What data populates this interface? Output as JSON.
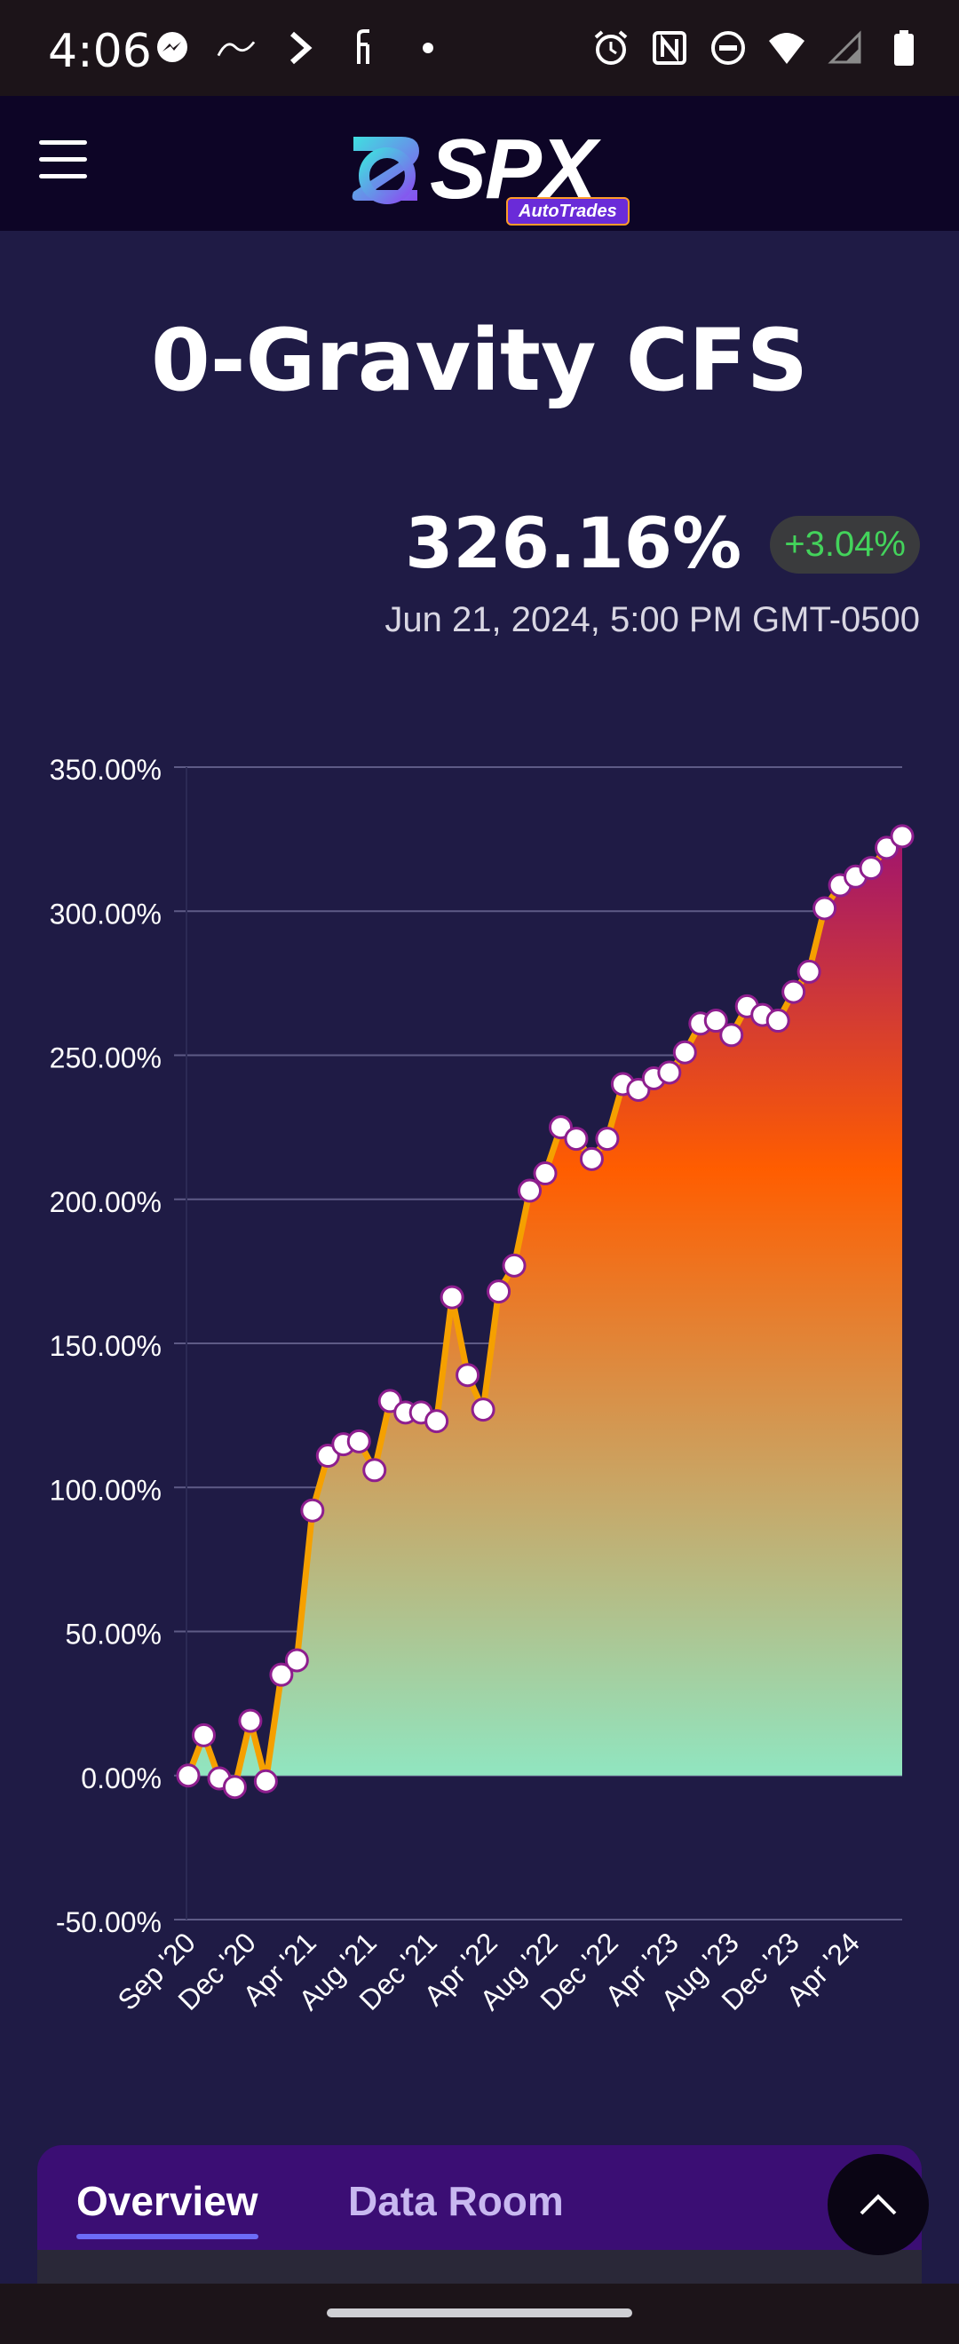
{
  "status_bar": {
    "time": "4:06",
    "left_icons": [
      "messenger-icon",
      "squiggle-icon",
      "chevron-icon",
      "fi-icon",
      "dot-icon"
    ],
    "right_icons": [
      "alarm-icon",
      "nfc-icon",
      "do-not-disturb-icon",
      "wifi-icon",
      "signal-icon",
      "battery-icon"
    ]
  },
  "app_bar": {
    "logo_text": "SPX",
    "logo_sub": "AutoTrades",
    "menu_icon": "hamburger-icon"
  },
  "page": {
    "title": "0-Gravity CFS",
    "value": "326.16%",
    "change": "+3.04%",
    "timestamp": "Jun 21, 2024, 5:00 PM GMT-0500"
  },
  "colors": {
    "background": "#1f1b45",
    "line": "#f5a000",
    "change_green": "#43d35b",
    "marker_stroke": "#8e1e8e"
  },
  "chart_data": {
    "type": "area",
    "ylim": [
      -50,
      350
    ],
    "ytick_labels": [
      "350.00%",
      "300.00%",
      "250.00%",
      "200.00%",
      "150.00%",
      "100.00%",
      "50.00%",
      "0.00%",
      "-50.00%"
    ],
    "yticks": [
      350,
      300,
      250,
      200,
      150,
      100,
      50,
      0,
      -50
    ],
    "xtick_labels": [
      "Sep '20",
      "Dec '20",
      "Apr '21",
      "Aug '21",
      "Dec '21",
      "Apr '22",
      "Aug '22",
      "Dec '22",
      "Apr '23",
      "Aug '23",
      "Dec '23",
      "Apr '24"
    ],
    "series": [
      {
        "values": [
          0,
          14,
          -1,
          -4,
          19,
          -2,
          35,
          40,
          92,
          111,
          115,
          116,
          106,
          130,
          126,
          126,
          123,
          166,
          139,
          127,
          168,
          177,
          203,
          209,
          225,
          221,
          214,
          221,
          240,
          238,
          242,
          244,
          251,
          261,
          262,
          257,
          267,
          264,
          262,
          272,
          279,
          301,
          309,
          312,
          315,
          322,
          326
        ]
      }
    ]
  },
  "tabs": [
    {
      "label": "Overview",
      "active": true
    },
    {
      "label": "Data Room",
      "active": false
    }
  ],
  "scroll_top_icon": "chevron-up-icon"
}
